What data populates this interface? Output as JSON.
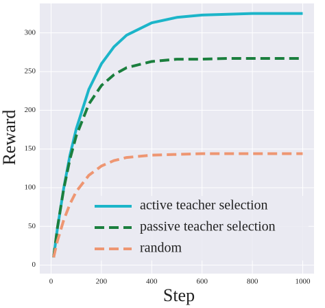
{
  "chart_data": {
    "type": "line",
    "x_label": "Step",
    "y_label": "Reward",
    "x": [
      10,
      25,
      50,
      75,
      100,
      150,
      200,
      250,
      300,
      400,
      500,
      600,
      700,
      800,
      900,
      1000
    ],
    "series": [
      {
        "name": "active teacher selection",
        "color": "#1cb5c9",
        "dash": "solid",
        "values": [
          10,
          47,
          99,
          142,
          176,
          227,
          260,
          282,
          297,
          313,
          320,
          323,
          324,
          325,
          325,
          325
        ]
      },
      {
        "name": "passive teacher selection",
        "color": "#1b7f3e",
        "dash": "dashed",
        "values": [
          10,
          48,
          98,
          137,
          167,
          208,
          232,
          246,
          255,
          263,
          266,
          266,
          267,
          267,
          267,
          267
        ]
      },
      {
        "name": "random",
        "color": "#ee9672",
        "dash": "dashed",
        "values": [
          10,
          31,
          58,
          79,
          95,
          116,
          128,
          135,
          139,
          142,
          143,
          144,
          144,
          144,
          144,
          144
        ]
      }
    ],
    "xlim": [
      -45,
      1045
    ],
    "ylim": [
      -11,
      338
    ],
    "xticks": [
      0,
      200,
      400,
      600,
      800,
      1000
    ],
    "yticks": [
      0,
      50,
      100,
      150,
      200,
      250,
      300
    ],
    "grid": true,
    "legend": "lower right"
  }
}
